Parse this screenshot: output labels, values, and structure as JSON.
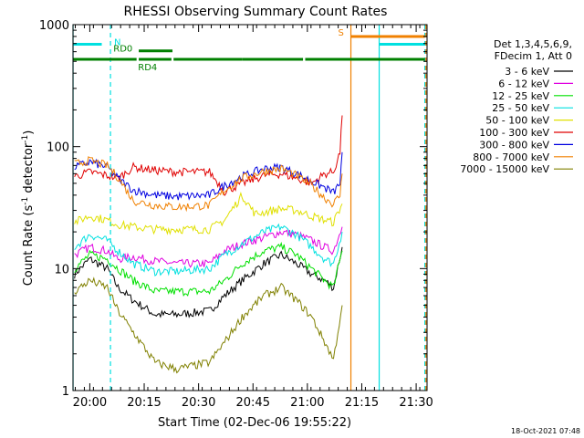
{
  "chart_data": {
    "type": "line",
    "title": "RHESSI Observing Summary Count Rates",
    "xlabel": "Start Time (02-Dec-06 19:55:22)",
    "ylabel_main": "Count Rate (s",
    "ylabel_sup1": "-1",
    "ylabel_mid": " detector",
    "ylabel_sup2": "-1",
    "ylabel_end": ")",
    "y_scale": "log",
    "ylim": [
      1,
      1000
    ],
    "xlim": [
      19.9228,
      21.55
    ],
    "x_ticks": [
      {
        "label": "20:00",
        "value": 20.0
      },
      {
        "label": "20:15",
        "value": 20.25
      },
      {
        "label": "20:30",
        "value": 20.5
      },
      {
        "label": "20:45",
        "value": 20.75
      },
      {
        "label": "21:00",
        "value": 21.0
      },
      {
        "label": "21:15",
        "value": 21.25
      },
      {
        "label": "21:30",
        "value": 21.5
      }
    ],
    "y_ticks": [
      {
        "label": "1",
        "value": 1
      },
      {
        "label": "10",
        "value": 10
      },
      {
        "label": "100",
        "value": 100
      },
      {
        "label": "1000",
        "value": 1000
      }
    ],
    "legend_header": [
      "Det 1,3,4,5,6,9,",
      "FDecim 1, Att 0"
    ],
    "legend_position": "right",
    "series": [
      {
        "name": "3 - 6 keV",
        "color": "#000000",
        "points": [
          [
            19.93,
            9
          ],
          [
            20.0,
            12
          ],
          [
            20.08,
            10
          ],
          [
            20.13,
            7
          ],
          [
            20.2,
            5.5
          ],
          [
            20.3,
            4.2
          ],
          [
            20.4,
            4.2
          ],
          [
            20.55,
            4.5
          ],
          [
            20.62,
            6
          ],
          [
            20.7,
            8
          ],
          [
            20.8,
            11
          ],
          [
            20.88,
            13
          ],
          [
            20.95,
            11
          ],
          [
            21.02,
            9
          ],
          [
            21.08,
            8
          ],
          [
            21.12,
            7
          ],
          [
            21.16,
            15
          ]
        ]
      },
      {
        "name": "6 - 12 keV",
        "color": "#e000e0",
        "points": [
          [
            19.93,
            13
          ],
          [
            20.0,
            15
          ],
          [
            20.08,
            14
          ],
          [
            20.13,
            12
          ],
          [
            20.2,
            12.5
          ],
          [
            20.3,
            11.5
          ],
          [
            20.4,
            11
          ],
          [
            20.55,
            11
          ],
          [
            20.62,
            14
          ],
          [
            20.7,
            16
          ],
          [
            20.8,
            18
          ],
          [
            20.88,
            20
          ],
          [
            20.95,
            19
          ],
          [
            21.02,
            17
          ],
          [
            21.08,
            15
          ],
          [
            21.12,
            14
          ],
          [
            21.16,
            22
          ]
        ]
      },
      {
        "name": "12 - 25 keV",
        "color": "#00e000",
        "points": [
          [
            19.93,
            10
          ],
          [
            20.0,
            13
          ],
          [
            20.08,
            12
          ],
          [
            20.13,
            10
          ],
          [
            20.2,
            8
          ],
          [
            20.3,
            6.5
          ],
          [
            20.4,
            6.5
          ],
          [
            20.55,
            6.5
          ],
          [
            20.62,
            8
          ],
          [
            20.7,
            11
          ],
          [
            20.8,
            14
          ],
          [
            20.88,
            15
          ],
          [
            20.95,
            13
          ],
          [
            21.02,
            10
          ],
          [
            21.08,
            8
          ],
          [
            21.12,
            7
          ],
          [
            21.16,
            14
          ]
        ]
      },
      {
        "name": "25 - 50 keV",
        "color": "#00e0e0",
        "points": [
          [
            19.93,
            15
          ],
          [
            20.0,
            19
          ],
          [
            20.08,
            17
          ],
          [
            20.13,
            14
          ],
          [
            20.2,
            11
          ],
          [
            20.3,
            9.5
          ],
          [
            20.4,
            9.5
          ],
          [
            20.55,
            10
          ],
          [
            20.62,
            13
          ],
          [
            20.7,
            16
          ],
          [
            20.8,
            20
          ],
          [
            20.88,
            22
          ],
          [
            20.95,
            19
          ],
          [
            21.02,
            15
          ],
          [
            21.08,
            12
          ],
          [
            21.12,
            11
          ],
          [
            21.16,
            20
          ]
        ]
      },
      {
        "name": "50 - 100 keV",
        "color": "#e0e000",
        "points": [
          [
            19.93,
            24
          ],
          [
            20.0,
            27
          ],
          [
            20.08,
            25
          ],
          [
            20.13,
            23
          ],
          [
            20.2,
            22
          ],
          [
            20.3,
            21
          ],
          [
            20.4,
            21
          ],
          [
            20.55,
            21
          ],
          [
            20.62,
            25
          ],
          [
            20.7,
            40
          ],
          [
            20.76,
            28
          ],
          [
            20.8,
            29
          ],
          [
            20.88,
            31
          ],
          [
            20.95,
            30
          ],
          [
            21.02,
            27
          ],
          [
            21.08,
            25
          ],
          [
            21.12,
            24
          ],
          [
            21.16,
            34
          ]
        ]
      },
      {
        "name": "100 - 300 keV",
        "color": "#e00000",
        "points": [
          [
            19.93,
            57
          ],
          [
            20.0,
            62
          ],
          [
            20.08,
            58
          ],
          [
            20.13,
            55
          ],
          [
            20.2,
            68
          ],
          [
            20.3,
            64
          ],
          [
            20.4,
            62
          ],
          [
            20.55,
            62
          ],
          [
            20.62,
            43
          ],
          [
            20.7,
            50
          ],
          [
            20.8,
            58
          ],
          [
            20.88,
            60
          ],
          [
            20.95,
            55
          ],
          [
            21.02,
            50
          ],
          [
            21.08,
            60
          ],
          [
            21.12,
            62
          ],
          [
            21.15,
            90
          ],
          [
            21.16,
            180
          ]
        ]
      },
      {
        "name": "300 - 800 keV",
        "color": "#0000e0",
        "points": [
          [
            19.93,
            68
          ],
          [
            20.0,
            75
          ],
          [
            20.08,
            68
          ],
          [
            20.13,
            55
          ],
          [
            20.2,
            44
          ],
          [
            20.3,
            40
          ],
          [
            20.4,
            39
          ],
          [
            20.55,
            40
          ],
          [
            20.62,
            48
          ],
          [
            20.7,
            57
          ],
          [
            20.8,
            66
          ],
          [
            20.88,
            68
          ],
          [
            20.95,
            60
          ],
          [
            21.02,
            52
          ],
          [
            21.08,
            46
          ],
          [
            21.12,
            42
          ],
          [
            21.15,
            50
          ],
          [
            21.16,
            90
          ]
        ]
      },
      {
        "name": "800 - 7000 keV",
        "color": "#f08000",
        "points": [
          [
            19.93,
            72
          ],
          [
            20.0,
            77
          ],
          [
            20.08,
            70
          ],
          [
            20.13,
            56
          ],
          [
            20.2,
            36
          ],
          [
            20.3,
            33
          ],
          [
            20.4,
            32
          ],
          [
            20.55,
            33
          ],
          [
            20.62,
            44
          ],
          [
            20.7,
            55
          ],
          [
            20.8,
            63
          ],
          [
            20.88,
            66
          ],
          [
            20.95,
            58
          ],
          [
            21.02,
            48
          ],
          [
            21.08,
            38
          ],
          [
            21.12,
            34
          ],
          [
            21.15,
            40
          ],
          [
            21.16,
            60
          ]
        ]
      },
      {
        "name": "7000 - 15000 keV",
        "color": "#808000",
        "points": [
          [
            19.93,
            6.5
          ],
          [
            20.0,
            8
          ],
          [
            20.08,
            7
          ],
          [
            20.13,
            4.5
          ],
          [
            20.2,
            3
          ],
          [
            20.3,
            1.7
          ],
          [
            20.4,
            1.5
          ],
          [
            20.55,
            1.7
          ],
          [
            20.62,
            2.5
          ],
          [
            20.7,
            4
          ],
          [
            20.8,
            6
          ],
          [
            20.88,
            7
          ],
          [
            20.95,
            5.5
          ],
          [
            21.02,
            4
          ],
          [
            21.08,
            2.5
          ],
          [
            21.12,
            1.8
          ],
          [
            21.16,
            5
          ]
        ]
      }
    ],
    "state_bars": [
      {
        "label": "N",
        "color": "#00e0e0",
        "level": 690,
        "segments": [
          [
            19.923,
            20.055
          ]
        ]
      },
      {
        "label": "RD0",
        "color": "#008000",
        "level": 610,
        "segments": [
          [
            20.225,
            20.38
          ]
        ]
      },
      {
        "label": "RD4",
        "color": "#008000",
        "level": 520,
        "segments": [
          [
            19.923,
            20.215
          ],
          [
            20.225,
            20.375
          ],
          [
            20.385,
            20.7
          ],
          [
            20.7,
            20.98
          ],
          [
            20.99,
            21.54
          ]
        ]
      },
      {
        "label": "S",
        "color": "#f08000",
        "level": 800,
        "segments": [
          [
            21.2,
            21.54
          ]
        ]
      },
      {
        "label": "",
        "color": "#00e0e0",
        "level": 690,
        "segments": [
          [
            21.33,
            21.54
          ]
        ]
      }
    ],
    "vertical_lines": [
      {
        "x": 19.923,
        "color": "#00e0e0",
        "style": "solid"
      },
      {
        "x": 20.095,
        "color": "#00e0e0",
        "style": "dashed"
      },
      {
        "x": 21.2,
        "color": "#f08000",
        "style": "solid"
      },
      {
        "x": 21.33,
        "color": "#00e0e0",
        "style": "solid"
      },
      {
        "x": 21.54,
        "color": "#00e0e0",
        "style": "dashed"
      },
      {
        "x": 21.545,
        "color": "#f08000",
        "style": "dashed"
      }
    ],
    "footer_date": "18-Oct-2021 07:48"
  }
}
